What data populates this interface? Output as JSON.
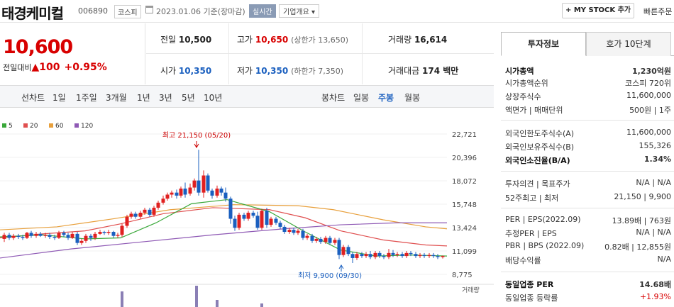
{
  "header": {
    "name": "태경케미컬",
    "code": "006890",
    "market": "코스피",
    "date": "2023.01.06 기준(장마감)",
    "realtime": "실시간",
    "corp_info": "기업개요 ▾",
    "mystock": "+ MY STOCK 추가",
    "quick": "빠른주문"
  },
  "price": {
    "current": "10,600",
    "change_label": "전일대비",
    "change_value": "▲100",
    "change_pct": "+0.95%"
  },
  "quote": {
    "prev_label": "전일",
    "prev": "10,500",
    "high_label": "고가",
    "high": "10,650",
    "high_limit": "(상한가 13,650)",
    "vol_label": "거래량",
    "vol": "16,614",
    "open_label": "시가",
    "open": "10,350",
    "low_label": "저가",
    "low": "10,350",
    "low_limit": "(하한가 7,350)",
    "amt_label": "거래대금",
    "amt": "174 백만"
  },
  "period": {
    "line_label": "선차트",
    "line_items": [
      "1일",
      "1주일",
      "3개월",
      "1년",
      "3년",
      "5년",
      "10년"
    ],
    "candle_label": "봉차트",
    "candle_items": [
      "일봉",
      "주봉",
      "월봉"
    ]
  },
  "chart_data": {
    "type": "candlestick",
    "ma_legend": [
      "5",
      "20",
      "60",
      "120"
    ],
    "ma_colors": [
      "#3aa83a",
      "#e05050",
      "#e8a03c",
      "#8f5ab5"
    ],
    "y_ticks": [
      "22,721",
      "20,396",
      "18,072",
      "15,748",
      "13,424",
      "11,099",
      "8,775"
    ],
    "ylim": [
      8775,
      22721
    ],
    "max_annotation": "최고 21,150 (05/20)",
    "min_annotation": "최저 9,900 (09/30)",
    "volume_label": "거래량"
  },
  "info": {
    "tab_on": "투자정보",
    "tab_off": "호가 10단계",
    "rows": [
      {
        "l": "시가총액",
        "r": "1,230억원",
        "bold": true
      },
      {
        "l": "시가총액순위",
        "r": "코스피 720위"
      },
      {
        "l": "상장주식수",
        "r": "11,600,000"
      },
      {
        "l": "액면가 | 매매단위",
        "r": "500원 | 1주"
      },
      {
        "l": "외국인한도주식수(A)",
        "r": "11,600,000"
      },
      {
        "l": "외국인보유주식수(B)",
        "r": "155,326"
      },
      {
        "l": "외국인소진율(B/A)",
        "r": "1.34%",
        "bold": true
      },
      {
        "l": "투자의견 | 목표주가",
        "r": "N/A | N/A"
      },
      {
        "l": "52주최고 | 최저",
        "r": "21,150 | 9,900"
      },
      {
        "l": "PER | EPS(2022.09)",
        "r": "13.89배 | 763원"
      },
      {
        "l": "추정PER | EPS",
        "r": "N/A | N/A"
      },
      {
        "l": "PBR | BPS (2022.09)",
        "r": "0.82배 | 12,855원"
      },
      {
        "l": "배당수익률",
        "r": "N/A"
      },
      {
        "l": "동일업종 PER",
        "r": "14.68배",
        "bold": true
      },
      {
        "l": "동일업종 등락률",
        "r": "+1.93%",
        "up": true
      }
    ]
  }
}
